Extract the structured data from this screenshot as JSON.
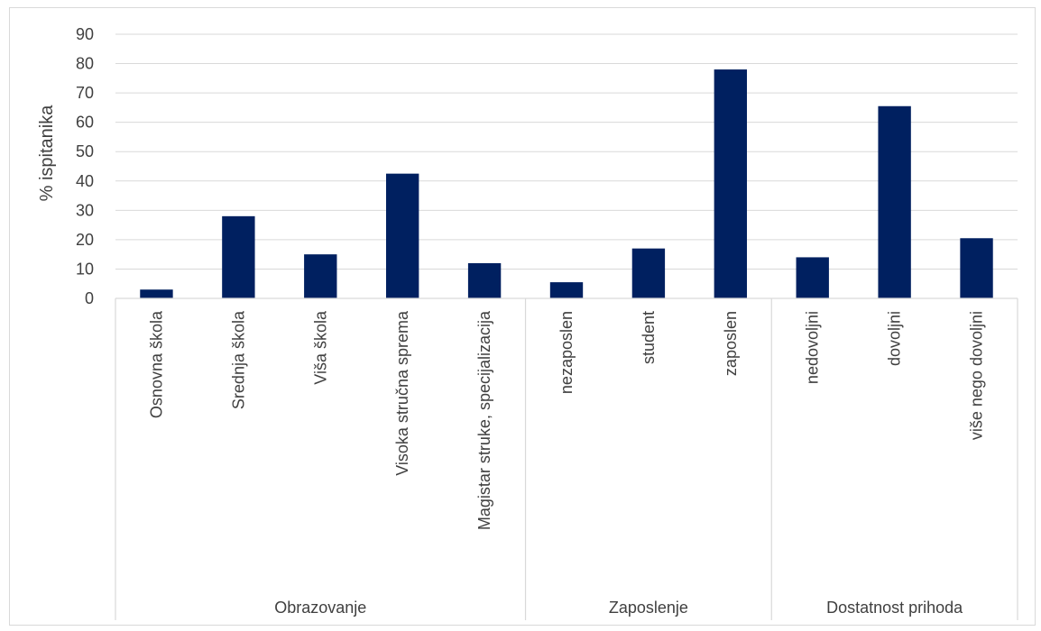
{
  "chart_data": {
    "type": "bar",
    "ylabel": "% ispitanika",
    "xlabel": "",
    "ylim": [
      0,
      90
    ],
    "yticks": [
      0,
      10,
      20,
      30,
      40,
      50,
      60,
      70,
      80,
      90
    ],
    "grid": true,
    "bar_color": "#002060",
    "groups": [
      {
        "label": "Obrazovanje",
        "categories": [
          "Osnovna škola",
          "Srednja škola",
          "Viša škola",
          "Visoka stručna sprema",
          "Magistar struke, specijalizacija"
        ],
        "values": [
          3,
          28,
          15,
          42.5,
          12
        ]
      },
      {
        "label": "Zaposlenje",
        "categories": [
          "nezaposlen",
          "student",
          "zaposlen"
        ],
        "values": [
          5.5,
          17,
          78
        ]
      },
      {
        "label": "Dostatnost prihoda",
        "categories": [
          "nedovoljni",
          "dovoljni",
          "više nego dovoljni"
        ],
        "values": [
          14,
          65.5,
          20.5
        ]
      }
    ]
  }
}
